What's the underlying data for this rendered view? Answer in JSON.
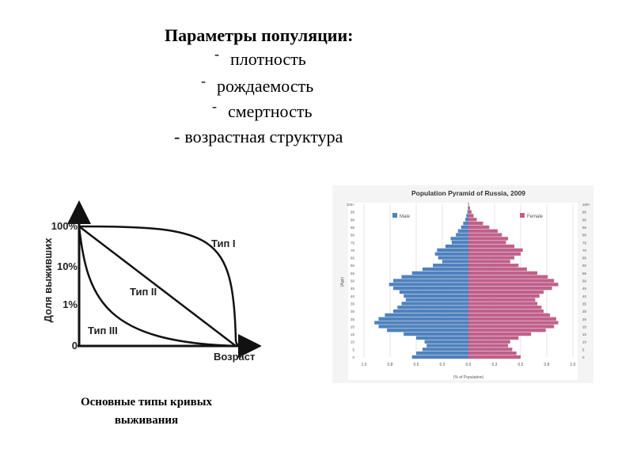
{
  "heading": "Параметры популяции:",
  "bullets": [
    {
      "dash": "-",
      "text": "плотность"
    },
    {
      "dash": "-",
      "text": "рождаемость"
    },
    {
      "dash": "-",
      "text": "смертность"
    },
    {
      "dash": "-",
      "text": "возрастная структура"
    }
  ],
  "caption_line1": "Основные типы кривых",
  "caption_line2": "выживания",
  "chart_data": [
    {
      "type": "line",
      "ylabel": "Доля выживших",
      "xlabel": "Возраст",
      "y_tick_labels": [
        "100%",
        "10%",
        "1%",
        "0"
      ],
      "series": [
        {
          "name": "Тип I"
        },
        {
          "name": "Тип II"
        },
        {
          "name": "Тип III"
        }
      ],
      "colors": {
        "axis": "#111111",
        "curve": "#111111"
      }
    },
    {
      "type": "bar",
      "title": "Population Pyramid of Russia, 2009",
      "xlabel": "(% of Population)",
      "ylabel": "(Age)",
      "legend_position": "top",
      "xlim": [
        -1.0,
        1.0
      ],
      "x_tick_labels": [
        "1.0",
        "0.8",
        "0.5",
        "0.3",
        "0.0",
        "0.3",
        "0.5",
        "0.8",
        "1.0"
      ],
      "age_tick_labels": [
        "100+",
        "95",
        "90",
        "85",
        "80",
        "75",
        "70",
        "65",
        "60",
        "55",
        "50",
        "45",
        "40",
        "35",
        "30",
        "25",
        "20",
        "15",
        "10",
        "5",
        "0"
      ],
      "ages": [
        0,
        2.5,
        5,
        7.5,
        10,
        12.5,
        15,
        17.5,
        20,
        22.5,
        25,
        27.5,
        30,
        32.5,
        35,
        37.5,
        40,
        42.5,
        45,
        47.5,
        50,
        52.5,
        55,
        57.5,
        60,
        62.5,
        65,
        67.5,
        70,
        72.5,
        75,
        77.5,
        80,
        82.5,
        85,
        87.5,
        90,
        92.5,
        95,
        97.5,
        100
      ],
      "series": [
        {
          "name": "Male",
          "color": "#4f81bd",
          "values": [
            0.54,
            0.5,
            0.44,
            0.4,
            0.42,
            0.5,
            0.62,
            0.78,
            0.86,
            0.9,
            0.86,
            0.8,
            0.72,
            0.68,
            0.64,
            0.6,
            0.62,
            0.66,
            0.72,
            0.76,
            0.72,
            0.64,
            0.54,
            0.44,
            0.34,
            0.25,
            0.29,
            0.32,
            0.3,
            0.22,
            0.16,
            0.17,
            0.12,
            0.1,
            0.07,
            0.05,
            0.03,
            0.02,
            0.01,
            0.005,
            0.002
          ]
        },
        {
          "name": "Female",
          "color": "#c0608a",
          "values": [
            0.5,
            0.46,
            0.42,
            0.38,
            0.4,
            0.48,
            0.6,
            0.74,
            0.82,
            0.86,
            0.84,
            0.78,
            0.72,
            0.7,
            0.66,
            0.64,
            0.68,
            0.72,
            0.8,
            0.86,
            0.82,
            0.76,
            0.66,
            0.56,
            0.48,
            0.4,
            0.44,
            0.5,
            0.52,
            0.44,
            0.36,
            0.38,
            0.32,
            0.28,
            0.2,
            0.14,
            0.08,
            0.05,
            0.03,
            0.015,
            0.005
          ]
        }
      ]
    }
  ]
}
